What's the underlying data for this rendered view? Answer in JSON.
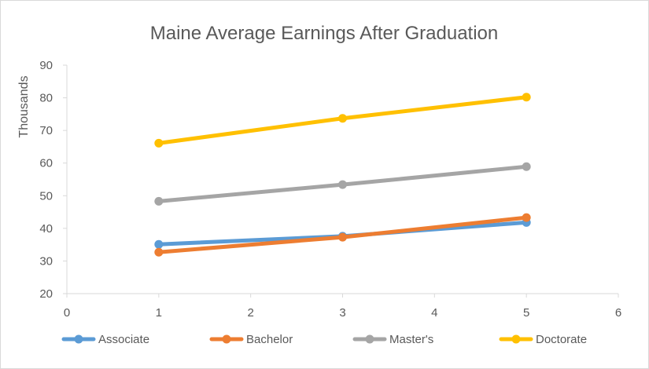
{
  "chart_data": {
    "type": "scatter",
    "title": "Maine Average Earnings After Graduation",
    "xlabel": "",
    "ylabel": "Thousands",
    "xlim": [
      0,
      6
    ],
    "ylim": [
      20,
      90
    ],
    "x_ticks": [
      0,
      1,
      2,
      3,
      4,
      5,
      6
    ],
    "y_ticks": [
      20,
      30,
      40,
      50,
      60,
      70,
      80,
      90
    ],
    "grid": false,
    "legend_position": "bottom",
    "series": [
      {
        "name": "Associate",
        "color": "#5b9bd5",
        "x": [
          1,
          3,
          5
        ],
        "y": [
          35.1,
          37.6,
          41.8
        ]
      },
      {
        "name": "Bachelor",
        "color": "#ed7d31",
        "x": [
          1,
          3,
          5
        ],
        "y": [
          32.7,
          37.3,
          43.3
        ]
      },
      {
        "name": "Master's",
        "color": "#a5a5a5",
        "x": [
          1,
          3,
          5
        ],
        "y": [
          48.3,
          53.4,
          58.9
        ]
      },
      {
        "name": "Doctorate",
        "color": "#ffc000",
        "x": [
          1,
          3,
          5
        ],
        "y": [
          66.1,
          73.7,
          80.2
        ]
      }
    ]
  }
}
